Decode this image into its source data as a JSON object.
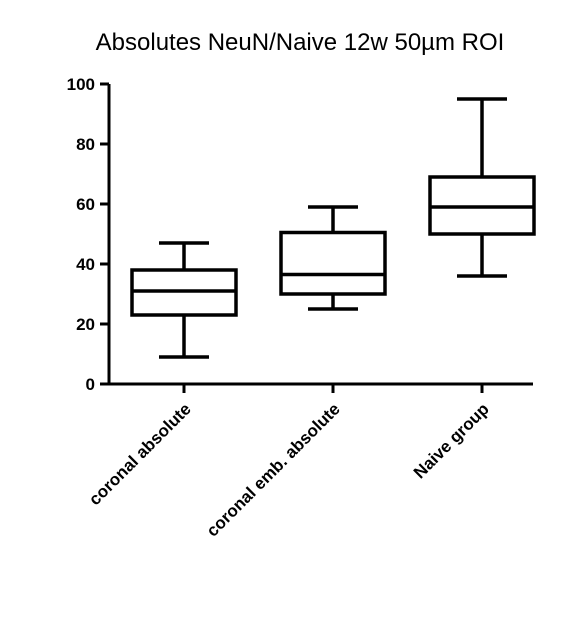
{
  "chart_data": {
    "type": "box",
    "title": "Absolutes NeuN/Naive 12w 50µm ROI",
    "xlabel": "",
    "ylabel": "",
    "ylim": [
      0,
      100
    ],
    "yticks": [
      0,
      20,
      40,
      60,
      80,
      100
    ],
    "categories": [
      "coronal absolute",
      "coronal emb. absolute",
      "Naive group"
    ],
    "boxes": [
      {
        "min": 9,
        "q1": 23,
        "median": 31,
        "q3": 38,
        "max": 47
      },
      {
        "min": 25,
        "q1": 30,
        "median": 36.5,
        "q3": 50.5,
        "max": 59
      },
      {
        "min": 36,
        "q1": 50,
        "median": 59,
        "q3": 69,
        "max": 95
      }
    ],
    "grid": false,
    "legend": "none"
  }
}
